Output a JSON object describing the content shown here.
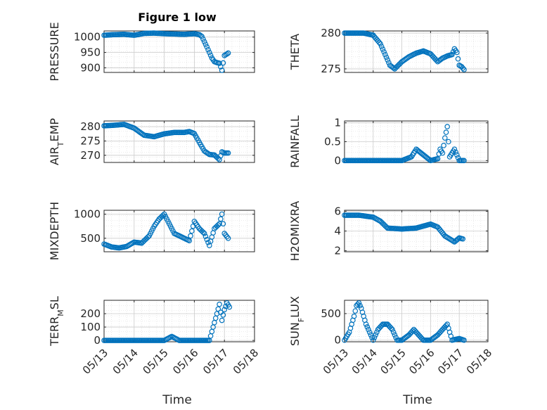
{
  "figure": {
    "title": "Figure 1 low",
    "xlabel": "Time"
  },
  "colors": {
    "marker": "#0072BD",
    "grid": "#d9d9d9",
    "axis": "#262626"
  },
  "x_ticks": [
    "05/13",
    "05/14",
    "05/15",
    "05/16",
    "05/17",
    "05/18"
  ],
  "chart_data": [
    {
      "type": "scatter",
      "title": "Figure 1 low",
      "xlabel": "",
      "ylabel": "PRESSURE",
      "ylabel_parts": [
        "PRESSURE"
      ],
      "ylim": [
        885,
        1020
      ],
      "yticks": [
        900,
        950,
        1000
      ],
      "grid": true,
      "x": [
        "05/13 00:00",
        "05/13 08:00",
        "05/13 16:00",
        "05/14 00:00",
        "05/14 08:00",
        "05/14 16:00",
        "05/15 00:00",
        "05/15 08:00",
        "05/15 16:00",
        "05/15 20:00",
        "05/16 00:00",
        "05/16 04:00",
        "05/16 06:00",
        "05/16 08:00",
        "05/16 10:00",
        "05/16 12:00",
        "05/16 14:00",
        "05/16 16:00",
        "05/16 18:00",
        "05/16 20:00",
        "05/16 22:00",
        "05/17 00:00",
        "05/17 03:00"
      ],
      "y": [
        1006,
        1008,
        1009,
        1006,
        1012,
        1013,
        1011,
        1010,
        1009,
        1010,
        1011,
        1008,
        1002,
        985,
        968,
        950,
        932,
        920,
        917,
        915,
        892,
        940,
        948
      ]
    },
    {
      "type": "scatter",
      "title": "",
      "xlabel": "",
      "ylabel": "THETA",
      "ylabel_parts": [
        "THETA"
      ],
      "ylim": [
        274.5,
        280.3
      ],
      "yticks": [
        275,
        280
      ],
      "grid": true,
      "x": [
        "05/13 00:00",
        "05/13 08:00",
        "05/13 16:00",
        "05/14 00:00",
        "05/14 06:00",
        "05/14 10:00",
        "05/14 14:00",
        "05/14 18:00",
        "05/15 00:00",
        "05/15 06:00",
        "05/15 12:00",
        "05/15 18:00",
        "05/16 00:00",
        "05/16 06:00",
        "05/16 10:00",
        "05/16 14:00",
        "05/16 18:00",
        "05/16 20:00",
        "05/16 22:00",
        "05/17 00:00",
        "05/17 02:00",
        "05/17 04:00"
      ],
      "y": [
        280,
        280,
        280,
        279.7,
        278.5,
        277,
        275.5,
        275.0,
        276.0,
        276.7,
        277.2,
        277.5,
        277.1,
        276.0,
        276.5,
        276.8,
        277.0,
        277.8,
        277.3,
        275.5,
        275.3,
        274.9
      ]
    },
    {
      "type": "scatter",
      "title": "",
      "xlabel": "",
      "ylabel": "AIR_TEMP",
      "ylabel_parts": [
        "AIR",
        "T",
        "EMP"
      ],
      "ylim": [
        267.5,
        282
      ],
      "yticks": [
        270,
        275,
        280
      ],
      "grid": true,
      "x": [
        "05/13 00:00",
        "05/13 08:00",
        "05/13 16:00",
        "05/14 00:00",
        "05/14 08:00",
        "05/14 16:00",
        "05/15 00:00",
        "05/15 08:00",
        "05/15 16:00",
        "05/15 20:00",
        "05/16 00:00",
        "05/16 04:00",
        "05/16 08:00",
        "05/16 12:00",
        "05/16 16:00",
        "05/16 20:00",
        "05/16 22:00",
        "05/17 00:00",
        "05/17 03:00"
      ],
      "y": [
        280.3,
        280.5,
        280.8,
        279.5,
        277.0,
        276.5,
        277.5,
        278.0,
        278.0,
        278.3,
        277.6,
        274.5,
        271.5,
        270.3,
        270.1,
        268.5,
        271.2,
        270.8,
        270.8
      ]
    },
    {
      "type": "scatter",
      "title": "",
      "xlabel": "",
      "ylabel": "RAINFALL",
      "ylabel_parts": [
        "RAINFALL"
      ],
      "ylim": [
        -0.05,
        1.05
      ],
      "yticks": [
        0,
        0.5,
        1
      ],
      "grid": true,
      "x": [
        "05/13 00:00",
        "05/13 12:00",
        "05/14 00:00",
        "05/14 12:00",
        "05/15 00:00",
        "05/15 08:00",
        "05/15 12:00",
        "05/16 00:00",
        "05/16 06:00",
        "05/16 08:00",
        "05/16 10:00",
        "05/16 12:00",
        "05/16 14:00",
        "05/16 16:00",
        "05/16 20:00",
        "05/16 22:00",
        "05/17 00:00",
        "05/17 04:00"
      ],
      "y": [
        0,
        0,
        0,
        0,
        0,
        0.1,
        0.3,
        0,
        0.05,
        0.3,
        0.2,
        0.6,
        0.9,
        0.1,
        0.3,
        0.15,
        0,
        0
      ]
    },
    {
      "type": "scatter",
      "title": "",
      "xlabel": "",
      "ylabel": "MIXDEPTH",
      "ylabel_parts": [
        "MIXDEPTH"
      ],
      "ylim": [
        220,
        1080
      ],
      "yticks": [
        500,
        1000
      ],
      "grid": true,
      "x": [
        "05/13 00:00",
        "05/13 06:00",
        "05/13 12:00",
        "05/13 18:00",
        "05/14 00:00",
        "05/14 06:00",
        "05/14 12:00",
        "05/14 16:00",
        "05/14 20:00",
        "05/15 00:00",
        "05/15 04:00",
        "05/15 08:00",
        "05/15 12:00",
        "05/15 16:00",
        "05/15 20:00",
        "05/16 00:00",
        "05/16 04:00",
        "05/16 08:00",
        "05/16 12:00",
        "05/16 16:00",
        "05/16 20:00",
        "05/16 22:00",
        "05/17 00:00",
        "05/17 03:00"
      ],
      "y": [
        380,
        320,
        300,
        330,
        420,
        400,
        550,
        750,
        900,
        1000,
        800,
        600,
        550,
        500,
        450,
        850,
        700,
        600,
        350,
        700,
        800,
        1000,
        600,
        500
      ]
    },
    {
      "type": "scatter",
      "title": "",
      "xlabel": "",
      "ylabel": "H2OMIXRA",
      "ylabel_parts": [
        "H2OMIXRA"
      ],
      "ylim": [
        1.9,
        6.1
      ],
      "yticks": [
        2,
        4,
        6
      ],
      "grid": true,
      "x": [
        "05/13 00:00",
        "05/13 12:00",
        "05/14 00:00",
        "05/14 06:00",
        "05/14 12:00",
        "05/15 00:00",
        "05/15 12:00",
        "05/16 00:00",
        "05/16 06:00",
        "05/16 12:00",
        "05/16 16:00",
        "05/16 20:00",
        "05/17 00:00",
        "05/17 03:00"
      ],
      "y": [
        5.6,
        5.6,
        5.4,
        5.0,
        4.3,
        4.2,
        4.3,
        4.7,
        4.4,
        3.5,
        3.2,
        2.9,
        3.3,
        3.2
      ]
    },
    {
      "type": "scatter",
      "title": "",
      "xlabel": "",
      "ylabel": "TERR_MSL",
      "ylabel_parts": [
        "TERR",
        "M",
        "SL"
      ],
      "ylim": [
        -10,
        300
      ],
      "yticks": [
        0,
        100,
        200
      ],
      "grid": true,
      "x": [
        "05/13 00:00",
        "05/13 12:00",
        "05/14 00:00",
        "05/14 12:00",
        "05/15 00:00",
        "05/15 06:00",
        "05/15 12:00",
        "05/16 00:00",
        "05/16 12:00",
        "05/16 18:00",
        "05/16 20:00",
        "05/16 22:00",
        "05/17 00:00",
        "05/17 02:00",
        "05/17 04:00"
      ],
      "y": [
        0,
        0,
        0,
        0,
        0,
        30,
        0,
        0,
        0,
        200,
        270,
        150,
        230,
        280,
        250
      ]
    },
    {
      "type": "scatter",
      "title": "",
      "xlabel": "",
      "ylabel": "SUN_FLUX",
      "ylabel_parts": [
        "SUN",
        "F",
        "LUX"
      ],
      "ylim": [
        -30,
        750
      ],
      "yticks": [
        0,
        500
      ],
      "grid": true,
      "x": [
        "05/13 00:00",
        "05/13 04:00",
        "05/13 08:00",
        "05/13 10:00",
        "05/13 12:00",
        "05/13 14:00",
        "05/13 18:00",
        "05/14 00:00",
        "05/14 04:00",
        "05/14 08:00",
        "05/14 12:00",
        "05/14 16:00",
        "05/14 20:00",
        "05/15 00:00",
        "05/15 06:00",
        "05/15 10:00",
        "05/15 14:00",
        "05/15 18:00",
        "05/16 00:00",
        "05/16 06:00",
        "05/16 10:00",
        "05/16 14:00",
        "05/16 18:00",
        "05/17 00:00",
        "05/17 04:00"
      ],
      "y": [
        0,
        150,
        450,
        650,
        700,
        600,
        300,
        0,
        200,
        300,
        300,
        200,
        0,
        0,
        100,
        200,
        100,
        0,
        0,
        100,
        200,
        300,
        0,
        30,
        0
      ]
    }
  ]
}
